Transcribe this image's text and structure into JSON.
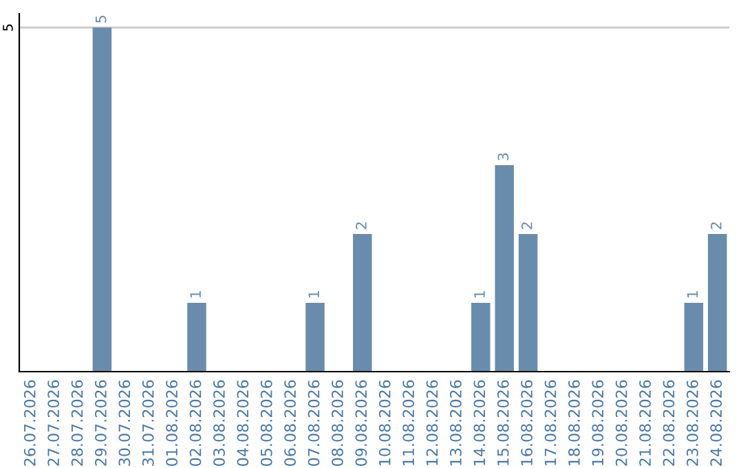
{
  "chart_data": {
    "type": "bar",
    "categories": [
      "26.07.2026",
      "27.07.2026",
      "28.07.2026",
      "29.07.2026",
      "30.07.2026",
      "31.07.2026",
      "01.08.2026",
      "02.08.2026",
      "03.08.2026",
      "04.08.2026",
      "05.08.2026",
      "06.08.2026",
      "07.08.2026",
      "08.08.2026",
      "09.08.2026",
      "10.08.2026",
      "11.08.2026",
      "12.08.2026",
      "13.08.2026",
      "14.08.2026",
      "15.08.2026",
      "16.08.2026",
      "17.08.2026",
      "18.08.2026",
      "19.08.2026",
      "20.08.2026",
      "21.08.2026",
      "22.08.2026",
      "23.08.2026",
      "24.08.2026"
    ],
    "values": [
      0,
      0,
      0,
      5,
      0,
      0,
      0,
      1,
      0,
      0,
      0,
      0,
      1,
      0,
      2,
      0,
      0,
      0,
      0,
      1,
      3,
      2,
      0,
      0,
      0,
      0,
      0,
      0,
      1,
      2
    ],
    "value_labels": [
      null,
      null,
      null,
      "5",
      null,
      null,
      null,
      "1",
      null,
      null,
      null,
      null,
      "1",
      null,
      "2",
      null,
      null,
      null,
      null,
      "1",
      "3",
      "2",
      null,
      null,
      null,
      null,
      null,
      null,
      "1",
      "2"
    ],
    "color": "#6a8cac",
    "ylim": [
      0,
      5.2
    ],
    "yticks": [
      5
    ],
    "grid": "y",
    "legend": false
  }
}
